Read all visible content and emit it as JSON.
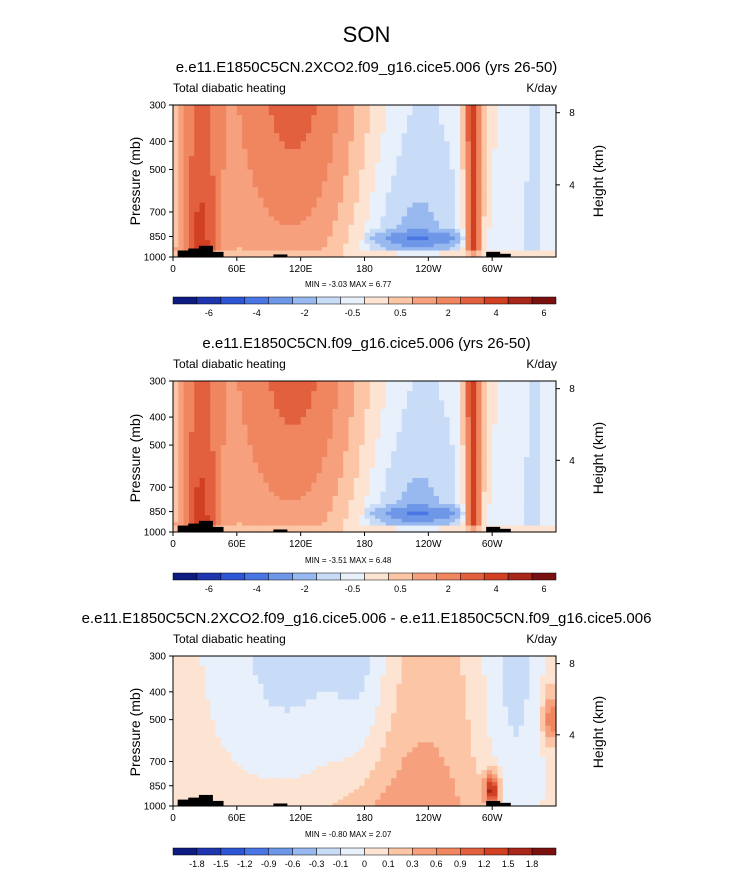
{
  "main_title": "SON",
  "colors": {
    "warm_fill": "#f0865f",
    "warm_dark": "#d24023",
    "warm_light": "#fcd0b6",
    "cool_fill": "#6f97e8",
    "cool_dark": "#3f66d6",
    "cool_light": "#c9dcf7",
    "topo": "#000000"
  },
  "chart_data": [
    {
      "type": "heatmap",
      "title": "e.e11.E1850C5CN.2XCO2.f09_g16.cice5.006 (yrs 26-50)",
      "field_label": "Total diabatic heating",
      "units": "K/day",
      "ylabel": "Pressure (mb)",
      "ylabel_right": "Height (km)",
      "xticks": [
        "0",
        "60E",
        "120E",
        "180",
        "120W",
        "60W"
      ],
      "xtick_values": [
        0,
        60,
        120,
        180,
        240,
        300
      ],
      "xlim": [
        0,
        360
      ],
      "yticks": [
        "300",
        "400",
        "500",
        "700",
        "850",
        "1000"
      ],
      "ytick_values": [
        300,
        400,
        500,
        700,
        850,
        1000
      ],
      "ylim": [
        1000,
        300
      ],
      "height_ticks": [
        "8",
        "4"
      ],
      "height_values": [
        8,
        4
      ],
      "min_label": "MIN =  -3.03  MAX =   6.77",
      "min": -3.03,
      "max": 6.77,
      "colorbar_levels": [
        "-6",
        "-4",
        "-2",
        "-0.5",
        "0.5",
        "2",
        "4",
        "6"
      ],
      "colorbar_values": [
        -6,
        -5,
        -4,
        -3,
        -2,
        -1,
        -0.5,
        0,
        0.5,
        1,
        2,
        3,
        4,
        5,
        6
      ]
    },
    {
      "type": "heatmap",
      "title": "e.e11.E1850C5CN.f09_g16.cice5.006 (yrs 26-50)",
      "field_label": "Total diabatic heating",
      "units": "K/day",
      "ylabel": "Pressure (mb)",
      "ylabel_right": "Height (km)",
      "xticks": [
        "0",
        "60E",
        "120E",
        "180",
        "120W",
        "60W"
      ],
      "xtick_values": [
        0,
        60,
        120,
        180,
        240,
        300
      ],
      "xlim": [
        0,
        360
      ],
      "yticks": [
        "300",
        "400",
        "500",
        "700",
        "850",
        "1000"
      ],
      "ytick_values": [
        300,
        400,
        500,
        700,
        850,
        1000
      ],
      "ylim": [
        1000,
        300
      ],
      "height_ticks": [
        "8",
        "4"
      ],
      "height_values": [
        8,
        4
      ],
      "min_label": "MIN =  -3.51  MAX =   6.48",
      "min": -3.51,
      "max": 6.48,
      "colorbar_levels": [
        "-6",
        "-4",
        "-2",
        "-0.5",
        "0.5",
        "2",
        "4",
        "6"
      ],
      "colorbar_values": [
        -6,
        -5,
        -4,
        -3,
        -2,
        -1,
        -0.5,
        0,
        0.5,
        1,
        2,
        3,
        4,
        5,
        6
      ]
    },
    {
      "type": "heatmap",
      "title": "e.e11.E1850C5CN.2XCO2.f09_g16.cice5.006 - e.e11.E1850C5CN.f09_g16.cice5.006",
      "field_label": "Total diabatic heating",
      "units": "K/day",
      "ylabel": "Pressure (mb)",
      "ylabel_right": "Height (km)",
      "xticks": [
        "0",
        "60E",
        "120E",
        "180",
        "120W",
        "60W"
      ],
      "xtick_values": [
        0,
        60,
        120,
        180,
        240,
        300
      ],
      "xlim": [
        0,
        360
      ],
      "yticks": [
        "300",
        "400",
        "500",
        "700",
        "850",
        "1000"
      ],
      "ytick_values": [
        300,
        400,
        500,
        700,
        850,
        1000
      ],
      "ylim": [
        1000,
        300
      ],
      "height_ticks": [
        "8",
        "4"
      ],
      "height_values": [
        8,
        4
      ],
      "min_label": "MIN =  -0.80  MAX =   2.07",
      "min": -0.8,
      "max": 2.07,
      "colorbar_levels": [
        "-1.8",
        "-1.5",
        "-1.2",
        "-0.9",
        "-0.6",
        "-0.3",
        "-0.1",
        "0",
        "0.1",
        "0.3",
        "0.6",
        "0.9",
        "1.2",
        "1.5",
        "1.8"
      ],
      "colorbar_values": [
        -1.8,
        -1.5,
        -1.2,
        -0.9,
        -0.6,
        -0.3,
        -0.1,
        0,
        0.1,
        0.3,
        0.6,
        0.9,
        1.2,
        1.5,
        1.8
      ]
    }
  ]
}
